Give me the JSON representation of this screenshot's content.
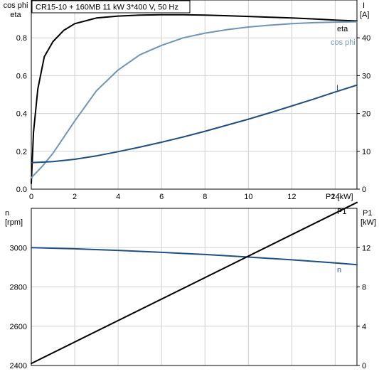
{
  "chart_data": [
    {
      "type": "line",
      "title": "CR15-10 + 160MB   11 kW   3*400 V, 50 Hz",
      "x_label": "P2 [kW]",
      "x_range": [
        0,
        15
      ],
      "x_ticks": [
        0,
        2,
        4,
        6,
        8,
        10,
        12,
        14
      ],
      "left_axis": {
        "label_lines": [
          "cos phi",
          "eta"
        ],
        "range": [
          0,
          1.0
        ],
        "ticks": [
          "0.0",
          "0.2",
          "0.4",
          "0.6",
          "0.8"
        ]
      },
      "right_axis": {
        "label_lines": [
          "I",
          "[A]"
        ],
        "range": [
          0,
          50
        ],
        "ticks": [
          "0",
          "10",
          "20",
          "30",
          "40"
        ]
      },
      "grid": true,
      "series": [
        {
          "name": "eta",
          "axis": "left",
          "color": "#000000",
          "x": [
            0,
            0.1,
            0.3,
            0.6,
            1.0,
            1.5,
            2,
            3,
            4,
            5,
            6,
            7,
            8,
            9,
            10,
            11,
            12,
            13,
            14,
            15
          ],
          "y": [
            0.03,
            0.3,
            0.53,
            0.7,
            0.78,
            0.84,
            0.875,
            0.905,
            0.915,
            0.92,
            0.922,
            0.922,
            0.92,
            0.917,
            0.913,
            0.909,
            0.905,
            0.9,
            0.894,
            0.889
          ]
        },
        {
          "name": "cos phi",
          "axis": "left",
          "color": "#6d95b8",
          "x": [
            0,
            0.5,
            1,
            2,
            3,
            4,
            5,
            6,
            7,
            8,
            9,
            10,
            11,
            12,
            13,
            14,
            15
          ],
          "y": [
            0.06,
            0.12,
            0.19,
            0.36,
            0.52,
            0.63,
            0.71,
            0.76,
            0.8,
            0.825,
            0.843,
            0.857,
            0.867,
            0.875,
            0.88,
            0.883,
            0.885
          ]
        },
        {
          "name": "I",
          "axis": "right",
          "color": "#1f4e82",
          "x": [
            0,
            1,
            2,
            3,
            4,
            5,
            6,
            7,
            8,
            9,
            10,
            11,
            12,
            13,
            14,
            15
          ],
          "y": [
            7.0,
            7.3,
            7.9,
            8.8,
            9.9,
            11.1,
            12.4,
            13.8,
            15.3,
            16.9,
            18.5,
            20.2,
            22.0,
            23.8,
            25.7,
            27.5
          ]
        }
      ]
    },
    {
      "type": "line",
      "x_range": [
        0,
        15
      ],
      "x_ticks": [
        0,
        2,
        4,
        6,
        8,
        10,
        12,
        14
      ],
      "left_axis": {
        "label_lines": [
          "n",
          "[rpm]"
        ],
        "range": [
          2400,
          3200
        ],
        "ticks": [
          "2400",
          "2600",
          "2800",
          "3000"
        ]
      },
      "right_axis": {
        "label_lines": [
          "P1",
          "[kW]"
        ],
        "range": [
          0,
          16
        ],
        "ticks": [
          "0",
          "4",
          "8",
          "12"
        ]
      },
      "grid": true,
      "series": [
        {
          "name": "n",
          "axis": "left",
          "color": "#1f4e82",
          "x": [
            0,
            2,
            4,
            6,
            8,
            10,
            12,
            14,
            15
          ],
          "y": [
            3000,
            2994,
            2986,
            2976,
            2965,
            2952,
            2938,
            2922,
            2913
          ]
        },
        {
          "name": "P1",
          "axis": "right",
          "color": "#000000",
          "x": [
            0,
            15
          ],
          "y": [
            0.2,
            16.6
          ]
        }
      ]
    }
  ]
}
